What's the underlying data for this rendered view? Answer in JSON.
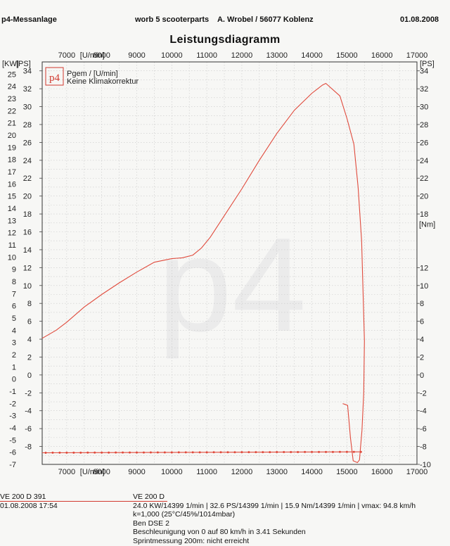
{
  "header": {
    "left": "p4-Messanlage",
    "center": "worb 5 scooterparts    A. Wrobel / 56077 Koblenz",
    "right": "01.08.2008"
  },
  "chart_data": {
    "type": "line",
    "title": "Leistungsdiagramm",
    "xlabel": "[U/min]",
    "x_range": [
      6300,
      17000
    ],
    "x_ticks": [
      7000,
      8000,
      9000,
      10000,
      11000,
      12000,
      13000,
      14000,
      15000,
      16000,
      17000
    ],
    "left_axis_kw": {
      "label": "[KW]",
      "range": [
        -7,
        26
      ],
      "ticks": [
        -7,
        -6,
        -5,
        -4,
        -3,
        -2,
        -1,
        0,
        1,
        2,
        3,
        4,
        5,
        6,
        7,
        8,
        9,
        10,
        11,
        12,
        13,
        14,
        15,
        16,
        17,
        18,
        19,
        20,
        21,
        22,
        23,
        24,
        25
      ]
    },
    "left_axis_ps": {
      "label": "[PS]",
      "range": [
        -10,
        35
      ],
      "ticks": [
        -8,
        -6,
        -4,
        -2,
        0,
        2,
        4,
        6,
        8,
        10,
        12,
        14,
        16,
        18,
        20,
        22,
        24,
        26,
        28,
        30,
        32,
        34
      ]
    },
    "right_axis": {
      "label_top": "[PS]",
      "label_mid": "[Nm]",
      "ticks": [
        -10,
        -8,
        -6,
        -4,
        -2,
        0,
        2,
        4,
        6,
        8,
        10,
        12,
        14,
        16,
        18,
        20,
        22,
        24,
        26,
        28,
        30,
        32,
        34
      ]
    },
    "grid": true,
    "legend": {
      "position": "top-left",
      "logo": "p4",
      "entries": [
        "Pgem / [U/min]",
        "Keine Klimakorrektur"
      ]
    },
    "series": [
      {
        "name": "Pgem / [U/min]",
        "color": "#e04a3c",
        "unit": "PS",
        "points": [
          [
            6300,
            4.1
          ],
          [
            6700,
            5.0
          ],
          [
            7000,
            5.9
          ],
          [
            7500,
            7.6
          ],
          [
            8000,
            9.0
          ],
          [
            8500,
            10.3
          ],
          [
            9000,
            11.5
          ],
          [
            9500,
            12.6
          ],
          [
            10000,
            13.0
          ],
          [
            10300,
            13.1
          ],
          [
            10600,
            13.4
          ],
          [
            10850,
            14.2
          ],
          [
            11100,
            15.4
          ],
          [
            11500,
            17.8
          ],
          [
            12000,
            20.8
          ],
          [
            12500,
            24.0
          ],
          [
            13000,
            27.0
          ],
          [
            13500,
            29.6
          ],
          [
            14000,
            31.5
          ],
          [
            14300,
            32.4
          ],
          [
            14399,
            32.6
          ],
          [
            14800,
            31.2
          ],
          [
            15000,
            28.7
          ],
          [
            15200,
            25.8
          ],
          [
            15320,
            21.0
          ],
          [
            15420,
            15.0
          ],
          [
            15470,
            8.0
          ],
          [
            15500,
            3.8
          ],
          [
            15480,
            -2.0
          ],
          [
            15430,
            -6.2
          ],
          [
            15380,
            -8.5
          ],
          [
            15360,
            -9.5
          ],
          [
            15300,
            -9.8
          ],
          [
            15180,
            -9.6
          ],
          [
            15100,
            -7.0
          ],
          [
            15020,
            -3.4
          ],
          [
            14950,
            -3.3
          ],
          [
            14880,
            -3.2
          ]
        ]
      },
      {
        "name": "baseline",
        "color": "#e04a3c",
        "unit": "PS",
        "points": [
          [
            6300,
            -8.7
          ],
          [
            15400,
            -8.6
          ]
        ],
        "markers": [
          6400,
          6600,
          6800,
          7000,
          7200,
          7400,
          7600,
          7800,
          8000,
          8200,
          8400,
          8600,
          8800,
          9000,
          9200,
          9400,
          9600,
          9800,
          10000,
          10200,
          10400,
          10600,
          10800,
          11000,
          11200,
          11400,
          11600,
          11800,
          12000,
          12200,
          12400,
          12600,
          12800,
          13000,
          13200,
          13400,
          13600,
          13800,
          14000,
          14200,
          14400,
          14600,
          14800,
          15000,
          15200,
          15400
        ]
      }
    ]
  },
  "footer": {
    "vehicle_left": "VE 200 D 391",
    "date_left": "01.08.2008  17:54",
    "vehicle_right": "VE 200 D",
    "stats": "24.0 KW/14399 1/min  |  32.6 PS/14399 1/min  |  15.9 Nm/14399 1/min  |  vmax: 94.8 km/h",
    "correction": "k=1,000 (25°C/45%/1014mbar)",
    "config": "Ben DSE 2",
    "acceleration": "Beschleunigung von 0 auf 80 km/h in 3.41 Sekunden",
    "sprint": "Sprintmessung 200m: nicht erreicht"
  }
}
